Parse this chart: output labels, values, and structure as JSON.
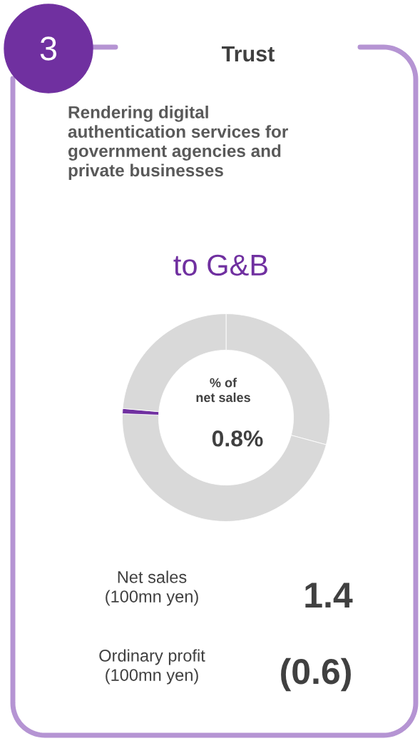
{
  "chart_data": {
    "type": "donut",
    "title": "Trust",
    "subtitle": "Rendering digital\nauthentication services for\ngovernment agencies and\nprivate businesses",
    "categories": [
      null,
      null,
      null,
      null
    ],
    "values": [
      29.2,
      46.4,
      0.8,
      23.6
    ],
    "colors": [
      "#d9d9d9",
      "#d9d9d9",
      "#7030a0",
      "#d9d9d9"
    ],
    "annotations": [
      "3",
      "to G&B",
      "% of\nnet sales",
      "0.8%",
      "Net sales\n(100mn yen)",
      "1.4",
      "Ordinary profit\n(100mn yen)",
      "(0.6)"
    ]
  }
}
